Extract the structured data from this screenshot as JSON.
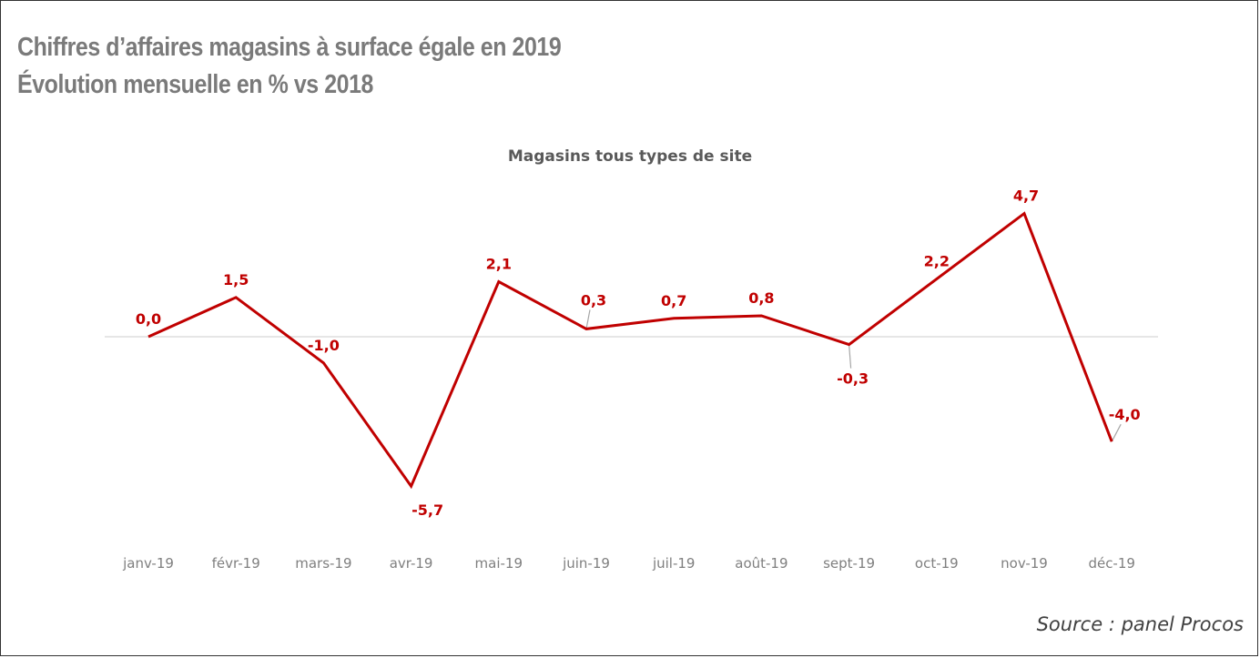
{
  "header": {
    "line1": "Chiffres d’affaires magasins à surface égale en 2019",
    "line2": "Évolution mensuelle en % vs 2018"
  },
  "footer": {
    "source": "Source : panel Procos"
  },
  "chart_data": {
    "type": "line",
    "title": "Magasins tous types de site",
    "xlabel": "",
    "ylabel": "",
    "categories": [
      "janv-19",
      "févr-19",
      "mars-19",
      "avr-19",
      "mai-19",
      "juin-19",
      "juil-19",
      "août-19",
      "sept-19",
      "oct-19",
      "nov-19",
      "déc-19"
    ],
    "series": [
      {
        "values": [
          0.0,
          1.5,
          -1.0,
          -5.7,
          2.1,
          0.3,
          0.7,
          0.8,
          -0.3,
          2.2,
          4.7,
          -4.0
        ],
        "labels": [
          "0,0",
          "1,5",
          "-1,0",
          "-5,7",
          "2,1",
          "0,3",
          "0,7",
          "0,8",
          "-0,3",
          "2,2",
          "4,7",
          "-4,0"
        ]
      }
    ],
    "ylim": [
      -5.7,
      4.7
    ],
    "grid": false,
    "legend": "none",
    "line_color": "#c00000",
    "axis_color": "#e6e6e6"
  }
}
